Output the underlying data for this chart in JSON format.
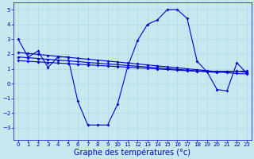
{
  "background_color": "#c8e8f0",
  "grid_color": "#b0d8e8",
  "line_color": "#0000cc",
  "xlabel": "Graphe des températures (°c)",
  "xlabel_fontsize": 7,
  "ylim": [
    -3.8,
    5.5
  ],
  "xlim": [
    -0.5,
    23.5
  ],
  "yticks": [
    -3,
    -2,
    -1,
    0,
    1,
    2,
    3,
    4,
    5
  ],
  "xticks": [
    0,
    1,
    2,
    3,
    4,
    5,
    6,
    7,
    8,
    9,
    10,
    11,
    12,
    13,
    14,
    15,
    16,
    17,
    18,
    19,
    20,
    21,
    22,
    23
  ],
  "line1_x": [
    0,
    1,
    2,
    3,
    4,
    5,
    6,
    7,
    8,
    9,
    10,
    11,
    12,
    13,
    14,
    15,
    16,
    17,
    18,
    19,
    20,
    21,
    22,
    23
  ],
  "line1_y": [
    3.0,
    1.8,
    2.2,
    1.1,
    1.8,
    1.8,
    -1.2,
    -2.8,
    -2.8,
    -2.8,
    -1.4,
    1.1,
    2.9,
    4.0,
    4.3,
    5.0,
    5.0,
    4.4,
    1.5,
    0.8,
    -0.4,
    -0.5,
    1.4,
    0.7
  ],
  "line2_x": [
    0,
    23
  ],
  "line2_y": [
    2.1,
    0.65
  ],
  "line3_x": [
    0,
    23
  ],
  "line3_y": [
    1.8,
    0.75
  ],
  "line4_x": [
    0,
    23
  ],
  "line4_y": [
    1.55,
    0.85
  ],
  "marker_x_line2": [
    0,
    1,
    2,
    3,
    4,
    5,
    6,
    7,
    8,
    9,
    10,
    11,
    12,
    13,
    14,
    15,
    16,
    17,
    18,
    19,
    20,
    21,
    22,
    23
  ],
  "marker_y_line2": [
    2.1,
    2.04,
    1.97,
    1.91,
    1.84,
    1.78,
    1.71,
    1.65,
    1.59,
    1.52,
    1.46,
    1.39,
    1.33,
    1.26,
    1.2,
    1.13,
    1.07,
    1.0,
    0.94,
    0.87,
    0.81,
    0.74,
    0.68,
    0.65
  ],
  "marker_y_line3": [
    1.8,
    1.75,
    1.7,
    1.64,
    1.59,
    1.54,
    1.49,
    1.43,
    1.38,
    1.33,
    1.28,
    1.22,
    1.17,
    1.12,
    1.07,
    1.01,
    0.96,
    0.91,
    0.86,
    0.8,
    0.75,
    0.8,
    0.85,
    0.75
  ],
  "marker_y_line4": [
    1.55,
    1.51,
    1.47,
    1.43,
    1.39,
    1.35,
    1.31,
    1.27,
    1.23,
    1.19,
    1.15,
    1.11,
    1.07,
    1.03,
    0.99,
    0.95,
    0.91,
    0.87,
    0.83,
    0.83,
    0.83,
    0.83,
    0.83,
    0.85
  ]
}
